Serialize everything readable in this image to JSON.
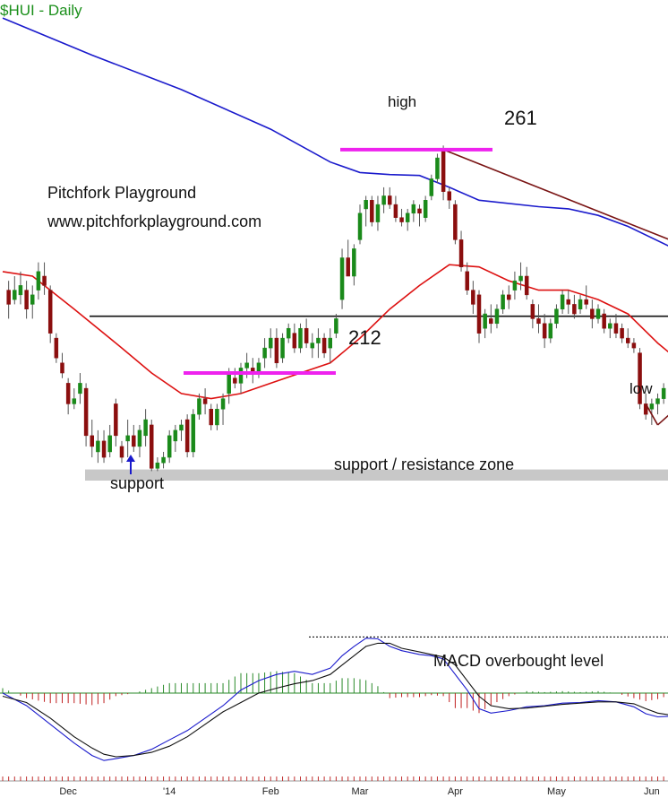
{
  "chart_data": [
    {
      "type": "candlestick",
      "title": "$HUI - Daily",
      "site_title": "Pitchfork Playground",
      "site_url": "www.pitchforkplayground.com",
      "x_tick_labels": [
        "Dec",
        "'14",
        "Feb",
        "Mar",
        "Apr",
        "May",
        "Jun"
      ],
      "y_scale": "log",
      "ylim": [
        188,
        300
      ],
      "price_levels": [
        {
          "label": "261",
          "value": 261,
          "caption": "high"
        },
        {
          "label": "212",
          "value": 212
        }
      ],
      "horizontal_line_value": 223.5,
      "annotations": {
        "support_arrow": "support",
        "zone_label": "support / resistance zone",
        "low_label": "low"
      },
      "support_zone": [
        191.8,
        193.8
      ],
      "candles": [
        [
          1,
          229,
          231,
          223,
          226
        ],
        [
          2,
          227,
          232,
          226,
          229
        ],
        [
          3,
          228,
          233,
          226,
          230
        ],
        [
          4,
          229,
          231,
          223,
          225
        ],
        [
          5,
          226,
          230,
          223,
          228
        ],
        [
          6,
          229,
          235,
          227,
          233
        ],
        [
          7,
          232,
          235,
          228,
          230
        ],
        [
          8,
          229,
          230,
          218,
          220
        ],
        [
          9,
          219,
          220,
          214,
          215
        ],
        [
          10,
          214,
          216,
          211,
          212
        ],
        [
          11,
          210,
          211,
          204,
          206
        ],
        [
          12,
          206,
          209,
          205,
          207
        ],
        [
          13,
          208,
          212,
          206,
          210
        ],
        [
          14,
          209,
          210,
          198,
          200
        ],
        [
          15,
          200,
          203,
          196,
          198
        ],
        [
          16,
          197,
          201,
          195,
          199
        ],
        [
          17,
          199,
          201,
          195,
          196
        ],
        [
          18,
          197,
          202,
          196,
          200
        ],
        [
          19,
          206,
          207,
          198,
          200
        ],
        [
          20,
          198,
          199,
          195,
          196
        ],
        [
          21,
          199,
          203,
          196,
          200
        ],
        [
          22,
          200,
          202,
          197,
          198
        ],
        [
          23,
          198,
          202,
          196,
          201
        ],
        [
          24,
          200,
          205,
          198,
          203
        ],
        [
          25,
          202,
          203,
          193.5,
          194
        ],
        [
          26,
          194,
          196,
          193.5,
          195
        ],
        [
          27,
          195,
          197,
          194,
          196
        ],
        [
          28,
          196,
          201,
          195,
          200
        ],
        [
          29,
          199,
          202,
          197,
          201
        ],
        [
          30,
          201,
          203,
          199,
          202
        ],
        [
          31,
          203,
          204,
          196,
          197
        ],
        [
          32,
          197,
          205,
          196,
          204
        ],
        [
          33,
          204,
          208,
          203,
          207
        ],
        [
          34,
          207,
          209,
          204,
          206
        ],
        [
          35,
          205,
          206,
          201,
          202
        ],
        [
          36,
          202,
          206,
          201,
          205
        ],
        [
          37,
          205,
          208,
          202,
          207
        ],
        [
          38,
          208,
          213,
          206,
          212
        ],
        [
          39,
          211,
          213,
          209,
          210
        ],
        [
          40,
          210,
          214,
          208,
          213
        ],
        [
          41,
          213,
          216,
          211,
          214
        ],
        [
          42,
          213,
          215,
          210,
          212
        ],
        [
          43,
          212,
          215,
          211,
          214
        ],
        [
          44,
          215,
          219,
          213,
          217
        ],
        [
          45,
          217,
          221,
          215,
          219
        ],
        [
          46,
          219,
          221,
          213,
          214
        ],
        [
          47,
          215,
          220,
          214,
          219
        ],
        [
          48,
          219,
          222,
          218,
          221
        ],
        [
          49,
          220,
          222,
          216,
          217
        ],
        [
          50,
          217,
          222,
          216,
          221
        ],
        [
          51,
          221,
          223,
          217,
          218
        ],
        [
          52,
          217,
          220,
          215,
          218
        ],
        [
          53,
          218,
          221,
          215,
          219
        ],
        [
          54,
          219,
          220,
          215,
          216
        ],
        [
          55,
          217,
          221,
          214,
          219
        ],
        [
          56,
          220,
          224,
          219,
          223
        ],
        [
          57,
          227,
          238,
          225,
          236
        ],
        [
          58,
          236,
          240,
          232,
          232
        ],
        [
          59,
          232,
          239,
          230,
          238
        ],
        [
          60,
          240,
          248,
          239,
          246
        ],
        [
          61,
          247,
          250,
          243,
          249
        ],
        [
          62,
          249,
          250,
          243,
          244
        ],
        [
          63,
          244,
          250,
          242,
          248
        ],
        [
          64,
          248,
          252,
          246,
          250
        ],
        [
          65,
          250,
          252,
          247,
          248
        ],
        [
          66,
          248,
          250,
          244,
          245
        ],
        [
          67,
          245,
          247,
          243,
          244
        ],
        [
          68,
          244,
          247,
          242,
          246
        ],
        [
          69,
          246,
          249,
          244,
          248
        ],
        [
          70,
          247,
          248,
          243,
          246
        ],
        [
          71,
          245,
          250,
          244,
          249
        ],
        [
          72,
          250,
          255,
          249,
          254
        ],
        [
          73,
          254,
          260,
          253,
          259
        ],
        [
          74,
          261,
          262,
          249,
          251
        ],
        [
          75,
          251,
          252,
          247,
          249
        ],
        [
          76,
          248,
          249,
          239,
          240
        ],
        [
          77,
          240,
          242,
          233,
          234
        ],
        [
          78,
          233,
          235,
          228,
          229
        ],
        [
          79,
          229,
          231,
          224,
          226
        ],
        [
          80,
          228,
          229,
          218,
          220
        ],
        [
          81,
          221,
          225,
          219,
          224
        ],
        [
          82,
          223,
          226,
          220,
          222
        ],
        [
          83,
          222,
          226,
          221,
          225
        ],
        [
          84,
          225,
          229,
          224,
          228
        ],
        [
          85,
          228,
          230,
          225,
          227
        ],
        [
          86,
          229,
          233,
          227,
          231
        ],
        [
          87,
          231,
          235,
          229,
          232
        ],
        [
          88,
          232,
          234,
          227,
          228
        ],
        [
          89,
          226,
          227,
          221,
          223
        ],
        [
          90,
          223,
          226,
          220,
          222
        ],
        [
          91,
          222,
          224,
          217,
          219
        ],
        [
          92,
          219,
          223,
          218,
          222
        ],
        [
          93,
          222,
          226,
          221,
          225
        ],
        [
          94,
          225,
          229,
          224,
          228
        ],
        [
          95,
          227,
          229,
          224,
          226
        ],
        [
          96,
          226,
          228,
          223,
          224
        ],
        [
          97,
          225,
          228,
          224,
          227
        ],
        [
          98,
          227,
          230,
          225,
          226
        ],
        [
          99,
          225,
          227,
          221,
          223
        ],
        [
          100,
          223,
          226,
          222,
          225
        ],
        [
          101,
          224,
          225,
          220,
          221
        ],
        [
          102,
          221,
          223,
          219,
          222
        ],
        [
          103,
          222,
          224,
          219,
          220
        ],
        [
          104,
          221,
          222,
          218,
          219
        ],
        [
          105,
          219,
          221,
          217,
          218
        ],
        [
          106,
          218,
          219,
          216,
          217
        ],
        [
          107,
          216,
          217,
          205,
          206
        ],
        [
          108,
          206,
          208,
          203,
          204
        ],
        [
          109,
          205,
          207,
          202,
          206
        ],
        [
          110,
          206,
          208,
          204,
          207
        ],
        [
          111,
          207,
          210,
          206,
          209
        ]
      ],
      "series": [
        {
          "name": "",
          "color": "#1a1acc",
          "values": [
            [
              0,
              295
            ],
            [
              15,
              285
            ],
            [
              30,
              276
            ],
            [
              45,
              266
            ],
            [
              55,
              258
            ],
            [
              60,
              255.5
            ],
            [
              65,
              255
            ],
            [
              70,
              254.8
            ],
            [
              75,
              252
            ],
            [
              80,
              249
            ],
            [
              90,
              247.5
            ],
            [
              95,
              247
            ],
            [
              100,
              245.5
            ],
            [
              105,
              243
            ],
            [
              112,
              238.5
            ]
          ]
        },
        {
          "name": "",
          "color": "#dd1111",
          "values": [
            [
              0,
              233
            ],
            [
              5,
              232
            ],
            [
              12,
              225
            ],
            [
              20,
              217
            ],
            [
              25,
              212
            ],
            [
              30,
              208
            ],
            [
              35,
              207
            ],
            [
              40,
              208
            ],
            [
              45,
              210
            ],
            [
              50,
              212
            ],
            [
              55,
              214
            ],
            [
              60,
              219
            ],
            [
              65,
              225
            ],
            [
              70,
              230
            ],
            [
              75,
              234.5
            ],
            [
              80,
              234
            ],
            [
              85,
              231
            ],
            [
              90,
              229
            ],
            [
              95,
              229
            ],
            [
              100,
              227
            ],
            [
              105,
              224
            ],
            [
              110,
              218
            ],
            [
              112,
              216
            ]
          ]
        }
      ],
      "trendlines": [
        {
          "color": "#7a1515",
          "values": [
            [
              74,
              261
            ],
            [
              112,
              240
            ]
          ]
        },
        {
          "color": "#7a1515",
          "values": [
            [
              110,
              202
            ],
            [
              112,
              204
            ]
          ]
        },
        {
          "color": "#7a1515",
          "values": [
            [
              108,
              206
            ],
            [
              110,
              202
            ]
          ]
        }
      ]
    },
    {
      "type": "macd",
      "label": "MACD overbought level",
      "overbought_level": 0.9,
      "ylim": [
        -1.25,
        1.05
      ],
      "macd_line": [
        [
          0,
          0
        ],
        [
          4,
          -0.2
        ],
        [
          8,
          -0.5
        ],
        [
          12,
          -0.8
        ],
        [
          15,
          -1
        ],
        [
          17,
          -1.08
        ],
        [
          19,
          -1.05
        ],
        [
          22,
          -1
        ],
        [
          25,
          -0.9
        ],
        [
          28,
          -0.75
        ],
        [
          31,
          -0.6
        ],
        [
          34,
          -0.4
        ],
        [
          37,
          -0.2
        ],
        [
          40,
          0.05
        ],
        [
          43,
          0.2
        ],
        [
          46,
          0.3
        ],
        [
          49,
          0.35
        ],
        [
          52,
          0.3
        ],
        [
          55,
          0.4
        ],
        [
          57,
          0.6
        ],
        [
          59,
          0.75
        ],
        [
          61,
          0.88
        ],
        [
          63,
          0.87
        ],
        [
          65,
          0.75
        ],
        [
          67,
          0.68
        ],
        [
          70,
          0.62
        ],
        [
          72,
          0.6
        ],
        [
          74,
          0.55
        ],
        [
          76,
          0.3
        ],
        [
          78,
          0.05
        ],
        [
          80,
          -0.25
        ],
        [
          82,
          -0.32
        ],
        [
          85,
          -0.28
        ],
        [
          88,
          -0.22
        ],
        [
          91,
          -0.2
        ],
        [
          94,
          -0.16
        ],
        [
          97,
          -0.15
        ],
        [
          100,
          -0.12
        ],
        [
          103,
          -0.14
        ],
        [
          106,
          -0.22
        ],
        [
          108,
          -0.33
        ],
        [
          110,
          -0.38
        ],
        [
          112,
          -0.37
        ]
      ],
      "signal_line": [
        [
          0,
          -0.05
        ],
        [
          4,
          -0.15
        ],
        [
          8,
          -0.4
        ],
        [
          12,
          -0.7
        ],
        [
          15,
          -0.88
        ],
        [
          17,
          -0.98
        ],
        [
          19,
          -1.02
        ],
        [
          22,
          -1
        ],
        [
          25,
          -0.95
        ],
        [
          28,
          -0.85
        ],
        [
          31,
          -0.7
        ],
        [
          34,
          -0.5
        ],
        [
          37,
          -0.3
        ],
        [
          40,
          -0.15
        ],
        [
          43,
          0
        ],
        [
          46,
          0.08
        ],
        [
          49,
          0.15
        ],
        [
          52,
          0.2
        ],
        [
          55,
          0.3
        ],
        [
          57,
          0.45
        ],
        [
          59,
          0.6
        ],
        [
          61,
          0.75
        ],
        [
          63,
          0.8
        ],
        [
          65,
          0.8
        ],
        [
          67,
          0.72
        ],
        [
          70,
          0.66
        ],
        [
          72,
          0.62
        ],
        [
          74,
          0.58
        ],
        [
          76,
          0.45
        ],
        [
          78,
          0.2
        ],
        [
          80,
          -0.05
        ],
        [
          82,
          -0.2
        ],
        [
          85,
          -0.25
        ],
        [
          88,
          -0.24
        ],
        [
          91,
          -0.21
        ],
        [
          94,
          -0.18
        ],
        [
          97,
          -0.16
        ],
        [
          100,
          -0.14
        ],
        [
          103,
          -0.14
        ],
        [
          106,
          -0.17
        ],
        [
          108,
          -0.25
        ],
        [
          110,
          -0.32
        ],
        [
          112,
          -0.35
        ]
      ]
    }
  ]
}
